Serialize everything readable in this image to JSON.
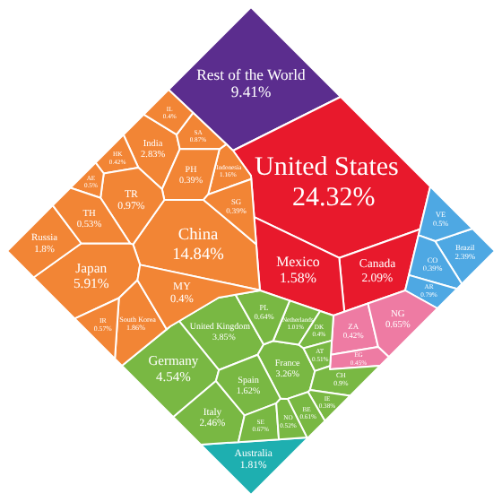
{
  "chart_data": {
    "type": "other",
    "categories": [
      "Rest of the World",
      "United States",
      "Canada",
      "Mexico",
      "Brazil",
      "VE",
      "CO",
      "AR",
      "ZA",
      "NG",
      "EG",
      "Australia",
      "United Kingdom",
      "Germany",
      "France",
      "Italy",
      "Spain",
      "Netherlands",
      "PL",
      "DK",
      "AT",
      "CH",
      "IE",
      "BE",
      "SE",
      "NO",
      "China",
      "Japan",
      "India",
      "South Korea",
      "Russia",
      "Indonesia",
      "SA",
      "IL",
      "PH",
      "SG",
      "HK",
      "TR",
      "AE",
      "TH",
      "IR",
      "MY"
    ],
    "values": [
      9.41,
      24.32,
      2.09,
      1.58,
      2.39,
      0.5,
      0.39,
      0.79,
      0.42,
      0.65,
      0.45,
      1.81,
      3.85,
      4.54,
      3.26,
      2.46,
      1.62,
      1.01,
      0.64,
      0.4,
      0.51,
      0.9,
      0.38,
      0.61,
      0.67,
      0.52,
      14.84,
      5.91,
      2.83,
      1.86,
      1.8,
      1.16,
      0.87,
      0.4,
      0.39,
      0.39,
      0.42,
      0.97,
      0.5,
      0.53,
      0.57,
      0.4
    ],
    "value_labels": [
      "9.41%",
      "24.32%",
      "2.09%",
      "1.58%",
      "2.39%",
      "0.5%",
      "0.39%",
      "0.79%",
      "0.42%",
      "0.65%",
      "0.45%",
      "1.81%",
      "3.85%",
      "4.54%",
      "3.26%",
      "2.46%",
      "1.62%",
      "1.01%",
      "0.64%",
      "0.4%",
      "0.51%",
      "0.9%",
      "0.38%",
      "0.61%",
      "0.67%",
      "0.52%",
      "14.84%",
      "5.91%",
      "2.83%",
      "1.86%",
      "1.8%",
      "1.16%",
      "0.87%",
      "0.4%",
      "0.39%",
      "0.39%",
      "0.42%",
      "0.97%",
      "0.5%",
      "0.53%",
      "0.57%",
      "0.4%"
    ],
    "colors": [
      "#5b2d8e",
      "#e8192c",
      "#e8192c",
      "#e8192c",
      "#4ea8e3",
      "#4ea8e3",
      "#4ea8e3",
      "#4ea8e3",
      "#ee7ba3",
      "#ee7ba3",
      "#ee7ba3",
      "#1eafb0",
      "#79b843",
      "#79b843",
      "#79b843",
      "#79b843",
      "#79b843",
      "#79b843",
      "#79b843",
      "#79b843",
      "#79b843",
      "#79b843",
      "#79b843",
      "#79b843",
      "#79b843",
      "#79b843",
      "#f28535",
      "#f28535",
      "#f28535",
      "#f28535",
      "#f28535",
      "#f28535",
      "#f28535",
      "#f28535",
      "#f28535",
      "#f28535",
      "#f28535",
      "#f28535",
      "#f28535",
      "#f28535",
      "#f28535",
      "#f28535"
    ]
  }
}
